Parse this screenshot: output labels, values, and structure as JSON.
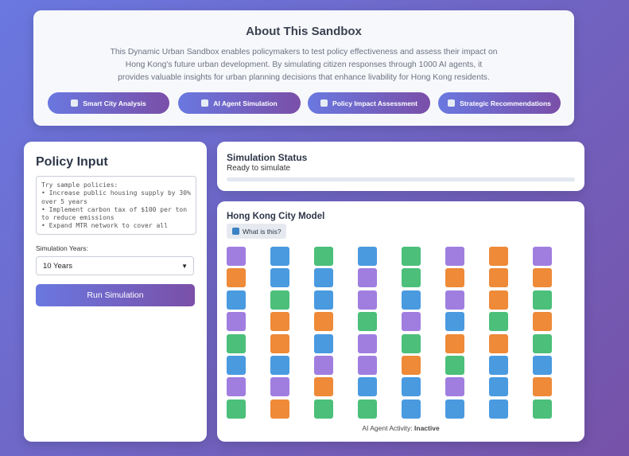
{
  "about": {
    "title": "About This Sandbox",
    "description": "This Dynamic Urban Sandbox enables policymakers to test policy effectiveness and assess their impact on Hong Kong's future urban development. By simulating citizen responses through 1000 AI agents, it provides valuable insights for urban planning decisions that enhance livability for Hong Kong residents.",
    "buttons": [
      "Smart City Analysis",
      "AI Agent Simulation",
      "Policy Impact Assessment",
      "Strategic Recommendations"
    ]
  },
  "policy_input": {
    "title": "Policy Input",
    "placeholder": "Try sample policies:\n• Increase public housing supply by 30% over 5 years\n• Implement carbon tax of $100 per ton to reduce emissions\n• Expand MTR network to cover all",
    "years_label": "Simulation Years:",
    "years_value": "10 Years",
    "run_button": "Run Simulation"
  },
  "status": {
    "title": "Simulation Status",
    "text": "Ready to simulate"
  },
  "city_model": {
    "title": "Hong Kong City Model",
    "help_button": "What is this?",
    "activity_label": "AI Agent Activity:",
    "activity_value": "Inactive"
  }
}
